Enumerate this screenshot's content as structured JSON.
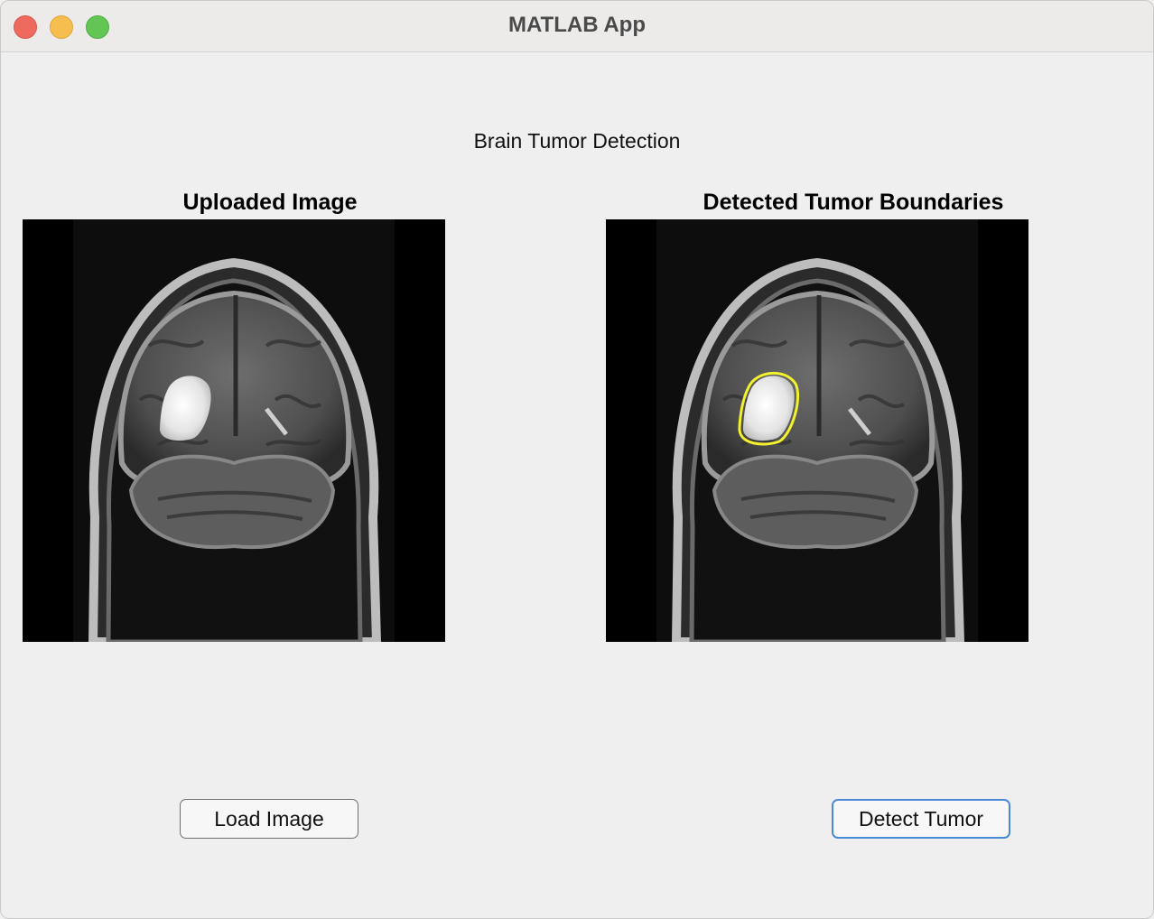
{
  "window": {
    "title": "MATLAB App"
  },
  "app": {
    "heading": "Brain Tumor Detection"
  },
  "panels": {
    "uploaded": {
      "title": "Uploaded Image"
    },
    "detected": {
      "title": "Detected Tumor Boundaries"
    }
  },
  "buttons": {
    "load": "Load Image",
    "detect": "Detect Tumor"
  },
  "colors": {
    "tumor_outline": "#f2f22e",
    "button_focus": "#4a89d8"
  }
}
